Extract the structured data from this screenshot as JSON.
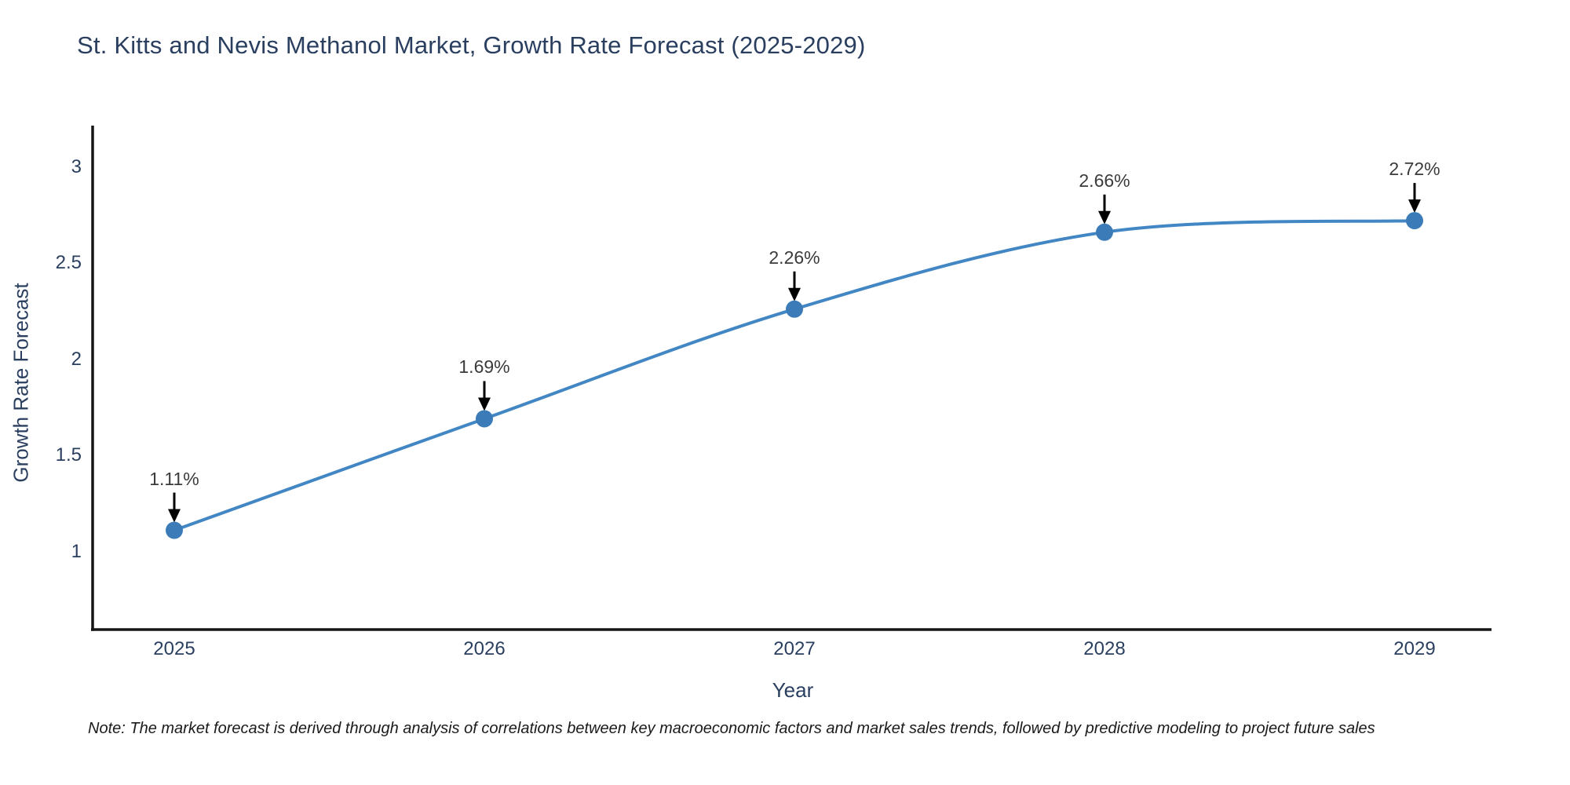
{
  "title": "St. Kitts and Nevis Methanol Market, Growth Rate Forecast (2025-2029)",
  "note": "Note: The market forecast is derived through analysis of correlations between key macroeconomic factors and market sales trends, followed by predictive modeling to project future sales",
  "chart_data": {
    "type": "line",
    "title": "St. Kitts and Nevis Methanol Market, Growth Rate Forecast (2025-2029)",
    "xlabel": "Year",
    "ylabel": "Growth Rate Forecast",
    "categories": [
      "2025",
      "2026",
      "2027",
      "2028",
      "2029"
    ],
    "values": [
      1.11,
      1.69,
      2.26,
      2.66,
      2.72
    ],
    "point_labels": [
      "1.11%",
      "1.69%",
      "2.26%",
      "2.66%",
      "2.72%"
    ],
    "x_tick_labels": [
      "2025",
      "2026",
      "2027",
      "2028",
      "2029"
    ],
    "y_tick_labels": [
      "3",
      "2.5",
      "2",
      "1.5",
      "1"
    ],
    "y_tick_values": [
      3,
      2.5,
      2,
      1.5,
      1
    ],
    "ylim": [
      0.6,
      3.2
    ],
    "line_shape": "spline",
    "grid": false,
    "legend": false,
    "annotation_style": "black-arrow-down-to-point",
    "colors": {
      "line": "#4287c4",
      "marker": "#3b7cb8",
      "axis": "#161616",
      "title_text": "#2a3f5f",
      "tick_text": "#2a3f5f",
      "annotation_text": "#3b3b3b",
      "background": "#ffffff"
    }
  }
}
